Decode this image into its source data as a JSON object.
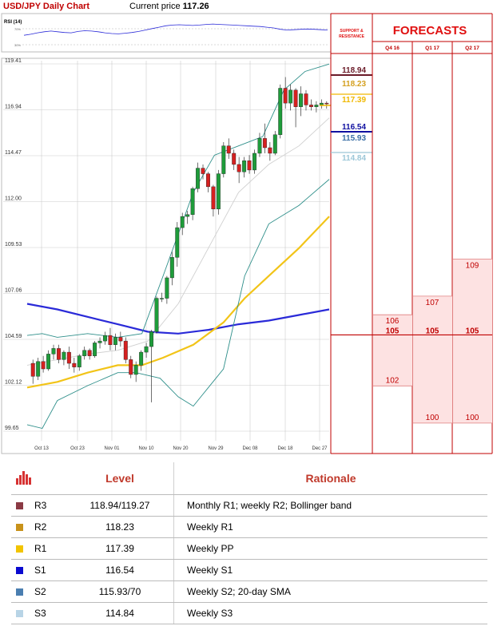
{
  "header": {
    "title": "USD/JPY Daily Chart",
    "price_label": "Current price",
    "price_value": "117.26"
  },
  "rsi": {
    "label": "RSI (14)",
    "upper_tick": "70%",
    "lower_tick": "30%",
    "values": [
      45,
      48,
      52,
      55,
      57,
      55,
      53,
      52,
      56,
      58,
      57,
      55,
      52,
      50,
      49,
      51,
      53,
      56,
      60,
      64,
      68,
      72,
      74,
      75,
      74,
      73,
      74,
      76,
      77,
      76,
      75,
      74,
      73,
      72,
      71,
      70,
      68,
      66,
      62,
      60,
      61,
      62,
      63,
      62,
      61,
      60
    ]
  },
  "chart_data": {
    "type": "candlestick",
    "title": "USD/JPY Daily Chart",
    "ylim": [
      99.65,
      119.41
    ],
    "y_ticks": [
      "119.41",
      "116.94",
      "114.47",
      "112.00",
      "109.53",
      "107.06",
      "104.59",
      "102.12",
      "99.65"
    ],
    "x_ticks": [
      "Oct 13",
      "Oct 23",
      "Nov 01",
      "Nov 10",
      "Nov 20",
      "Nov 29",
      "Dec 08",
      "Dec 18",
      "Dec 27"
    ],
    "candles": [
      {
        "o": 103.3,
        "h": 103.5,
        "l": 102.2,
        "c": 102.6
      },
      {
        "o": 102.6,
        "h": 103.6,
        "l": 102.4,
        "c": 103.4
      },
      {
        "o": 103.4,
        "h": 103.7,
        "l": 102.8,
        "c": 103.0
      },
      {
        "o": 103.0,
        "h": 104.0,
        "l": 102.9,
        "c": 103.8
      },
      {
        "o": 103.8,
        "h": 104.3,
        "l": 103.5,
        "c": 104.1
      },
      {
        "o": 104.1,
        "h": 104.3,
        "l": 103.3,
        "c": 103.5
      },
      {
        "o": 103.5,
        "h": 104.0,
        "l": 103.2,
        "c": 103.9
      },
      {
        "o": 103.9,
        "h": 104.2,
        "l": 103.0,
        "c": 103.3
      },
      {
        "o": 103.3,
        "h": 103.6,
        "l": 102.8,
        "c": 103.1
      },
      {
        "o": 103.1,
        "h": 103.8,
        "l": 102.9,
        "c": 103.7
      },
      {
        "o": 103.7,
        "h": 104.2,
        "l": 103.5,
        "c": 104.0
      },
      {
        "o": 104.0,
        "h": 104.1,
        "l": 103.5,
        "c": 103.7
      },
      {
        "o": 103.7,
        "h": 104.5,
        "l": 103.6,
        "c": 104.4
      },
      {
        "o": 104.4,
        "h": 104.7,
        "l": 104.1,
        "c": 104.5
      },
      {
        "o": 104.5,
        "h": 105.0,
        "l": 104.3,
        "c": 104.8
      },
      {
        "o": 104.8,
        "h": 105.2,
        "l": 104.0,
        "c": 104.3
      },
      {
        "o": 104.3,
        "h": 104.9,
        "l": 104.0,
        "c": 104.7
      },
      {
        "o": 104.7,
        "h": 105.0,
        "l": 104.2,
        "c": 104.5
      },
      {
        "o": 104.5,
        "h": 104.7,
        "l": 103.3,
        "c": 103.5
      },
      {
        "o": 103.5,
        "h": 103.7,
        "l": 102.5,
        "c": 102.7
      },
      {
        "o": 102.7,
        "h": 103.4,
        "l": 102.3,
        "c": 103.2
      },
      {
        "o": 103.2,
        "h": 104.0,
        "l": 102.9,
        "c": 103.9
      },
      {
        "o": 103.9,
        "h": 104.4,
        "l": 103.6,
        "c": 104.2
      },
      {
        "o": 104.2,
        "h": 105.1,
        "l": 101.2,
        "c": 105.0
      },
      {
        "o": 105.0,
        "h": 106.9,
        "l": 104.9,
        "c": 106.8
      },
      {
        "o": 106.8,
        "h": 107.1,
        "l": 106.6,
        "c": 106.8
      },
      {
        "o": 106.8,
        "h": 108.0,
        "l": 106.5,
        "c": 107.9
      },
      {
        "o": 107.9,
        "h": 109.3,
        "l": 107.5,
        "c": 109.0
      },
      {
        "o": 109.0,
        "h": 110.9,
        "l": 108.5,
        "c": 110.6
      },
      {
        "o": 110.6,
        "h": 111.4,
        "l": 110.2,
        "c": 111.2
      },
      {
        "o": 111.2,
        "h": 111.5,
        "l": 110.8,
        "c": 111.3
      },
      {
        "o": 111.3,
        "h": 112.8,
        "l": 111.0,
        "c": 112.7
      },
      {
        "o": 112.7,
        "h": 114.1,
        "l": 112.5,
        "c": 113.8
      },
      {
        "o": 113.8,
        "h": 114.0,
        "l": 113.2,
        "c": 113.5
      },
      {
        "o": 113.5,
        "h": 113.6,
        "l": 112.5,
        "c": 112.8
      },
      {
        "o": 112.8,
        "h": 112.9,
        "l": 111.2,
        "c": 111.6
      },
      {
        "o": 111.6,
        "h": 113.7,
        "l": 111.3,
        "c": 113.5
      },
      {
        "o": 113.5,
        "h": 115.2,
        "l": 113.3,
        "c": 115.0
      },
      {
        "o": 115.0,
        "h": 115.4,
        "l": 114.3,
        "c": 114.6
      },
      {
        "o": 114.6,
        "h": 114.8,
        "l": 113.7,
        "c": 114.0
      },
      {
        "o": 114.0,
        "h": 114.4,
        "l": 113.0,
        "c": 113.6
      },
      {
        "o": 113.6,
        "h": 114.4,
        "l": 113.3,
        "c": 114.2
      },
      {
        "o": 114.2,
        "h": 114.5,
        "l": 113.5,
        "c": 113.7
      },
      {
        "o": 113.7,
        "h": 114.8,
        "l": 113.5,
        "c": 114.6
      },
      {
        "o": 114.6,
        "h": 115.7,
        "l": 114.4,
        "c": 115.4
      },
      {
        "o": 115.4,
        "h": 116.2,
        "l": 114.6,
        "c": 114.9
      },
      {
        "o": 114.9,
        "h": 115.2,
        "l": 114.2,
        "c": 114.6
      },
      {
        "o": 114.6,
        "h": 115.8,
        "l": 114.5,
        "c": 115.6
      },
      {
        "o": 115.6,
        "h": 118.3,
        "l": 115.4,
        "c": 118.1
      },
      {
        "o": 118.1,
        "h": 118.7,
        "l": 117.0,
        "c": 117.3
      },
      {
        "o": 117.3,
        "h": 118.3,
        "l": 116.9,
        "c": 118.0
      },
      {
        "o": 118.0,
        "h": 118.1,
        "l": 116.0,
        "c": 117.1
      },
      {
        "o": 117.1,
        "h": 118.2,
        "l": 116.6,
        "c": 117.8
      },
      {
        "o": 117.8,
        "h": 118.0,
        "l": 116.9,
        "c": 117.2
      },
      {
        "o": 117.2,
        "h": 117.5,
        "l": 116.9,
        "c": 117.1
      },
      {
        "o": 117.1,
        "h": 117.4,
        "l": 116.8,
        "c": 117.2
      },
      {
        "o": 117.2,
        "h": 117.5,
        "l": 117.0,
        "c": 117.3
      },
      {
        "o": 117.3,
        "h": 117.4,
        "l": 117.0,
        "c": 117.26
      }
    ],
    "overlays": [
      {
        "color": "#2a2ad8",
        "values": [
          [
            0,
            106.5
          ],
          [
            0.1,
            106.2
          ],
          [
            0.2,
            105.8
          ],
          [
            0.3,
            105.4
          ],
          [
            0.4,
            105.0
          ],
          [
            0.5,
            104.9
          ],
          [
            0.6,
            105.1
          ],
          [
            0.7,
            105.4
          ],
          [
            0.8,
            105.6
          ],
          [
            0.9,
            105.9
          ],
          [
            1.0,
            106.2
          ]
        ]
      },
      {
        "color": "#f2c418",
        "values": [
          [
            0,
            102.0
          ],
          [
            0.1,
            102.3
          ],
          [
            0.2,
            102.8
          ],
          [
            0.3,
            103.2
          ],
          [
            0.38,
            103.2
          ],
          [
            0.45,
            103.6
          ],
          [
            0.55,
            104.3
          ],
          [
            0.65,
            105.5
          ],
          [
            0.72,
            106.8
          ],
          [
            0.8,
            108.0
          ],
          [
            0.9,
            109.5
          ],
          [
            1.0,
            111.2
          ]
        ]
      },
      {
        "color": "#d0d0d0",
        "values": [
          [
            0,
            103.2
          ],
          [
            0.1,
            103.5
          ],
          [
            0.2,
            103.8
          ],
          [
            0.3,
            104.0
          ],
          [
            0.4,
            104.5
          ],
          [
            0.5,
            106.5
          ],
          [
            0.6,
            109.5
          ],
          [
            0.7,
            112.5
          ],
          [
            0.8,
            114.0
          ],
          [
            0.9,
            115.0
          ],
          [
            1.0,
            116.5
          ]
        ]
      },
      {
        "color": "#2e8f8a",
        "values": [
          [
            0,
            104.8
          ],
          [
            0.05,
            104.9
          ],
          [
            0.1,
            104.7
          ],
          [
            0.2,
            104.9
          ],
          [
            0.3,
            104.7
          ],
          [
            0.38,
            104.9
          ],
          [
            0.45,
            108.0
          ],
          [
            0.55,
            112.5
          ],
          [
            0.62,
            114.5
          ],
          [
            0.7,
            115.0
          ],
          [
            0.78,
            115.5
          ],
          [
            0.85,
            118.0
          ],
          [
            0.92,
            119.0
          ],
          [
            1.0,
            119.4
          ]
        ]
      },
      {
        "color": "#2e8f8a",
        "values": [
          [
            0,
            100.0
          ],
          [
            0.05,
            99.8
          ],
          [
            0.1,
            101.3
          ],
          [
            0.2,
            102.1
          ],
          [
            0.3,
            102.8
          ],
          [
            0.36,
            102.8
          ],
          [
            0.44,
            102.5
          ],
          [
            0.5,
            101.5
          ],
          [
            0.55,
            101.0
          ],
          [
            0.6,
            102.0
          ],
          [
            0.65,
            103.0
          ],
          [
            0.72,
            108.0
          ],
          [
            0.8,
            110.8
          ],
          [
            0.9,
            111.8
          ],
          [
            1.0,
            113.2
          ]
        ]
      }
    ]
  },
  "levels_panel": [
    {
      "value": "118.94",
      "color": "#6a1a28",
      "line": true
    },
    {
      "value": "118.23",
      "color": "#d4a020",
      "line": false
    },
    {
      "value": "117.39",
      "color": "#f0b800",
      "line": true
    },
    {
      "value": "116.54",
      "color": "#1010a0",
      "line": true
    },
    {
      "value": "115.93",
      "color": "#3a6ea5",
      "line": false
    },
    {
      "value": "114.84",
      "color": "#9cc7d8",
      "line": true
    }
  ],
  "forecasts": {
    "title": "FORECASTS",
    "support_label_1": "SUPPORT &",
    "support_label_2": "RESISTANCE",
    "columns": [
      {
        "label": "Q4 16",
        "high": "106",
        "base": "105",
        "low": "102"
      },
      {
        "label": "Q1 17",
        "high": "107",
        "base": "105",
        "low": "100"
      },
      {
        "label": "Q2 17",
        "high": "109",
        "base": "105",
        "low": "100"
      }
    ]
  },
  "table": {
    "header_level": "Level",
    "header_rationale": "Rationale",
    "icon": "bar-chart-icon",
    "rows": [
      {
        "name": "R3",
        "level": "118.94/119.27",
        "rationale": "Monthly R1; weekly R2; Bollinger band",
        "color": "#8b3a44"
      },
      {
        "name": "R2",
        "level": "118.23",
        "rationale": "Weekly R1",
        "color": "#c8921a"
      },
      {
        "name": "R1",
        "level": "117.39",
        "rationale": "Weekly PP",
        "color": "#f2c400"
      },
      {
        "name": "S1",
        "level": "116.54",
        "rationale": "Weekly S1",
        "color": "#0a0ad0"
      },
      {
        "name": "S2",
        "level": "115.93/70",
        "rationale": "Weekly S2; 20-day SMA",
        "color": "#4a7eb0"
      },
      {
        "name": "S3",
        "level": "114.84",
        "rationale": "Weekly S3",
        "color": "#b8d4e6"
      }
    ]
  }
}
